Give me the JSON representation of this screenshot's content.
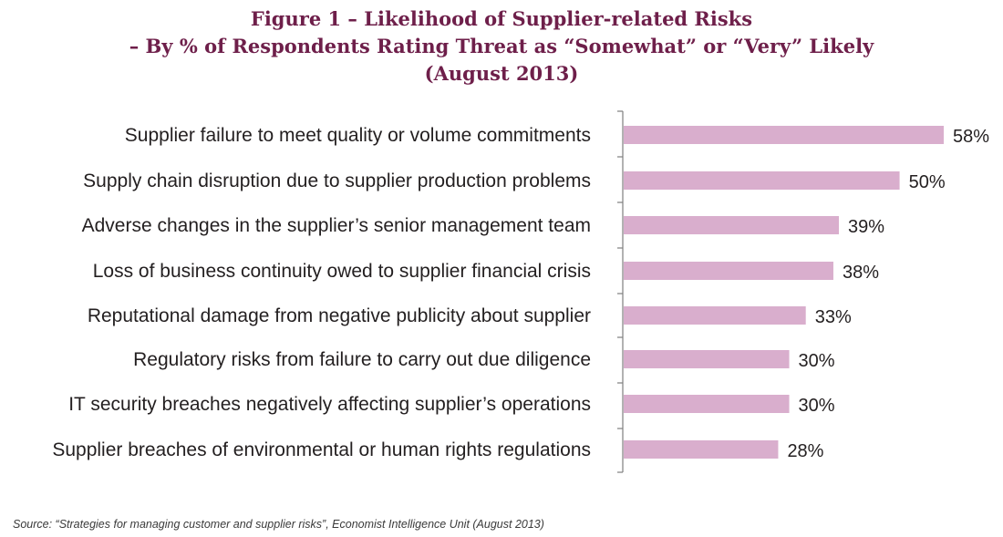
{
  "chart_data": {
    "type": "bar",
    "orientation": "horizontal",
    "title": [
      "Figure 1 – Likelihood of Supplier-related Risks",
      "– By % of Respondents Rating Threat as “Somewhat” or “Very” Likely",
      "(August 2013)"
    ],
    "categories": [
      "Supplier failure to meet quality or volume commitments",
      "Supply chain disruption due to supplier production problems",
      "Adverse changes in the supplier’s senior management team",
      "Loss of business continuity owed to supplier financial crisis",
      "Reputational damage from negative publicity about supplier",
      "Regulatory risks from failure to carry out due diligence",
      "IT security breaches negatively affecting supplier’s operations",
      "Supplier breaches of environmental or human rights regulations"
    ],
    "values": [
      58,
      50,
      39,
      38,
      33,
      30,
      30,
      28
    ],
    "value_labels": [
      "58%",
      "50%",
      "39%",
      "38%",
      "33%",
      "30%",
      "30%",
      "28%"
    ],
    "unit": "%",
    "xlim": [
      0,
      58
    ],
    "bar_color": "#d9aecd",
    "title_color": "#6e1f4a",
    "grid": false,
    "legend": "none"
  },
  "source": "Source: “Strategies for managing customer and supplier risks”, Economist Intelligence Unit (August 2013)"
}
